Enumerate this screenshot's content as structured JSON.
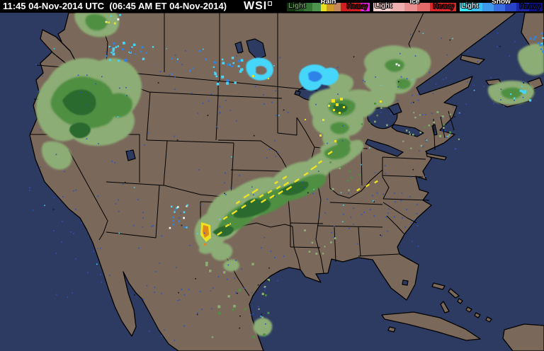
{
  "header": {
    "time_utc": "11:45 04-Nov-2014 UTC",
    "time_local": "(06:45 AM ET 04-Nov-2014)",
    "logo_text": "WSI"
  },
  "legend": {
    "rain": {
      "name": "Rain",
      "light_label": "Light",
      "heavy_label": "Heavy",
      "name_color": "#ffffff",
      "light_text_color": "#6f9b60",
      "heavy_text_color": "#6e0a0a",
      "segments": [
        {
          "color": "#123812",
          "w": 12
        },
        {
          "color": "#255c25",
          "w": 12
        },
        {
          "color": "#347434",
          "w": 12
        },
        {
          "color": "#4d934d",
          "w": 12
        },
        {
          "color": "#e8e020",
          "w": 8
        },
        {
          "color": "#cf9b26",
          "w": 10
        },
        {
          "color": "#c4875d",
          "w": 10
        },
        {
          "color": "#d01f1f",
          "w": 28
        },
        {
          "color": "#e41ee4",
          "w": 13
        }
      ]
    },
    "ice": {
      "name": "Ice",
      "light_label": "Light",
      "heavy_label": "Heavy",
      "name_color": "#ffffff",
      "light_text_color": "#f6d2d2",
      "heavy_text_color": "#7e0e0e",
      "segments": [
        {
          "color": "#f6cfcf",
          "w": 24
        },
        {
          "color": "#f0b0b0",
          "w": 20
        },
        {
          "color": "#ea8f8f",
          "w": 18
        },
        {
          "color": "#e46a6a",
          "w": 18
        },
        {
          "color": "#dc2828",
          "w": 37
        }
      ]
    },
    "snow": {
      "name": "Snow",
      "light_label": "Light",
      "heavy_label": "Heavy",
      "name_color": "#ffffff",
      "light_text_color": "#c8f2ff",
      "heavy_text_color": "#0a1878",
      "segments": [
        {
          "color": "#38e4f8",
          "w": 16
        },
        {
          "color": "#3cc0f4",
          "w": 16
        },
        {
          "color": "#3e98ec",
          "w": 16
        },
        {
          "color": "#3a6ee0",
          "w": 16
        },
        {
          "color": "#2844c4",
          "w": 16
        },
        {
          "color": "#1c24a8",
          "w": 18
        },
        {
          "color": "#10128c",
          "w": 19
        }
      ]
    }
  },
  "map_colors": {
    "ocean": "#2d3a61",
    "land": "#7a685a",
    "border": "#000000",
    "rain_light": "#8cad74",
    "rain_mid": "#4f8f43",
    "rain_dark": "#2c6a2f",
    "rain_yellow": "#ece223",
    "rain_orange": "#e08820",
    "snow_cyan": "#45d6fa",
    "snow_blue": "#2f83e8",
    "noise_blue": "#2a52c0"
  }
}
